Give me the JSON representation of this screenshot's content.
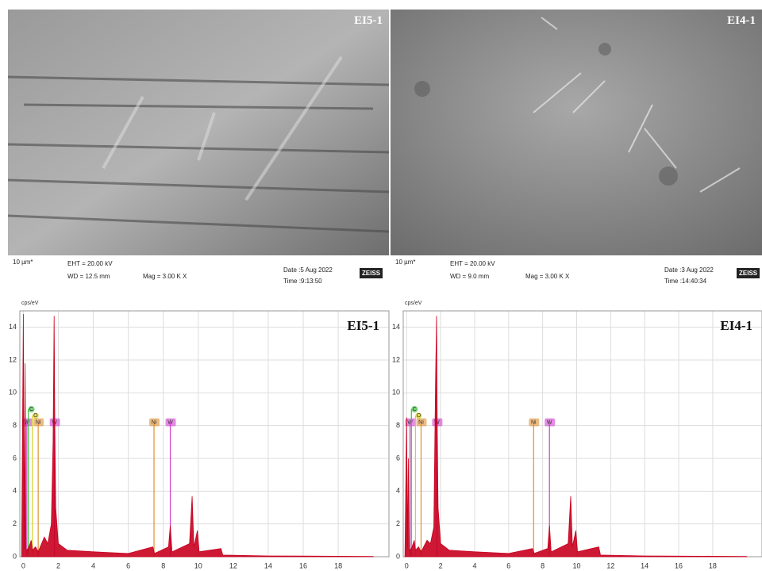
{
  "sem_images": [
    {
      "label": "EI5-1",
      "scale": "10 µm*",
      "eht": "EHT = 20.00 kV",
      "wd": "WD = 12.5 mm",
      "mag": "Mag =  3.00 K X",
      "date": "Date :5 Aug 2022",
      "time": "Time :9:13:50",
      "brand": "ZEISS"
    },
    {
      "label": "EI4-1",
      "scale": "10 µm*",
      "eht": "EHT = 20.00 kV",
      "wd": "WD =  9.0 mm",
      "mag": "Mag =  3.00 K X",
      "date": "Date :3 Aug 2022",
      "time": "Time :14:40:34",
      "brand": "ZEISS"
    }
  ],
  "chart_data": [
    {
      "type": "area",
      "title": "EI5-1",
      "y_label": "cps/eV",
      "color": "#c8001e",
      "x": [
        -0.1,
        0,
        0.05,
        0.1,
        0.15,
        0.28,
        0.45,
        0.52,
        0.7,
        0.85,
        1.2,
        1.4,
        1.6,
        1.7,
        1.76,
        1.8,
        1.85,
        2.0,
        2.5,
        4,
        6,
        7.4,
        7.5,
        8.3,
        8.4,
        8.5,
        9.5,
        9.65,
        9.75,
        9.95,
        10.05,
        11.3,
        11.4,
        14,
        18,
        20
      ],
      "values": [
        0,
        14.8,
        0.5,
        11.8,
        0.4,
        0.5,
        1.0,
        0.4,
        0.6,
        0.3,
        1.2,
        0.8,
        2.0,
        7.0,
        14.7,
        8.0,
        3.0,
        0.8,
        0.4,
        0.3,
        0.2,
        0.6,
        0.2,
        0.6,
        1.9,
        0.3,
        0.8,
        3.7,
        0.6,
        1.6,
        0.3,
        0.5,
        0.1,
        0.05,
        0.03,
        0.02
      ],
      "markers": [
        {
          "element": "W",
          "energy": 0.2,
          "color": "#d040d0"
        },
        {
          "element": "C",
          "energy": 0.28,
          "color": "#40c040"
        },
        {
          "element": "O",
          "energy": 0.52,
          "color": "#d8d020"
        },
        {
          "element": "Ni",
          "energy": 0.85,
          "color": "#e09030"
        },
        {
          "element": "W",
          "energy": 1.78,
          "color": "#d040d0"
        },
        {
          "element": "Ni",
          "energy": 7.47,
          "color": "#e09030"
        },
        {
          "element": "W",
          "energy": 8.4,
          "color": "#d040d0"
        }
      ],
      "xlim": [
        -0.2,
        20.9
      ],
      "xticks": [
        0,
        2,
        4,
        6,
        8,
        10,
        12,
        14,
        16,
        18
      ],
      "ylim": [
        0,
        15
      ],
      "yticks": [
        0,
        2,
        4,
        6,
        8,
        10,
        12,
        14
      ],
      "grid": true
    },
    {
      "type": "area",
      "title": "EI4-1",
      "y_label": "cps/eV",
      "color": "#c8001e",
      "x": [
        -0.1,
        0,
        0.05,
        0.1,
        0.15,
        0.28,
        0.45,
        0.52,
        0.7,
        0.85,
        1.2,
        1.4,
        1.6,
        1.7,
        1.76,
        1.8,
        1.85,
        2.0,
        2.5,
        4,
        6,
        7.4,
        7.5,
        8.3,
        8.4,
        8.5,
        9.5,
        9.65,
        9.75,
        9.95,
        10.05,
        11.3,
        11.4,
        14,
        18,
        20
      ],
      "values": [
        0,
        8.5,
        0.5,
        6.0,
        0.4,
        0.5,
        1.0,
        0.4,
        0.6,
        0.3,
        1.0,
        0.8,
        1.8,
        10.6,
        14.7,
        8.0,
        3.0,
        0.8,
        0.4,
        0.3,
        0.2,
        0.5,
        0.2,
        0.5,
        1.9,
        0.3,
        0.8,
        3.7,
        0.6,
        1.6,
        0.3,
        0.6,
        0.1,
        0.05,
        0.03,
        0.02
      ],
      "markers": [
        {
          "element": "W",
          "energy": 0.2,
          "color": "#d040d0"
        },
        {
          "element": "C",
          "energy": 0.28,
          "color": "#40c040"
        },
        {
          "element": "O",
          "energy": 0.52,
          "color": "#d8d020"
        },
        {
          "element": "Ni",
          "energy": 0.85,
          "color": "#e09030"
        },
        {
          "element": "W",
          "energy": 1.78,
          "color": "#d040d0"
        },
        {
          "element": "Ni",
          "energy": 7.47,
          "color": "#e09030"
        },
        {
          "element": "W",
          "energy": 8.4,
          "color": "#d040d0"
        }
      ],
      "xlim": [
        -0.2,
        20.9
      ],
      "xticks": [
        0,
        2,
        4,
        6,
        8,
        10,
        12,
        14,
        16,
        18
      ],
      "ylim": [
        0,
        15
      ],
      "yticks": [
        0,
        2,
        4,
        6,
        8,
        10,
        12,
        14
      ],
      "grid": true
    }
  ]
}
